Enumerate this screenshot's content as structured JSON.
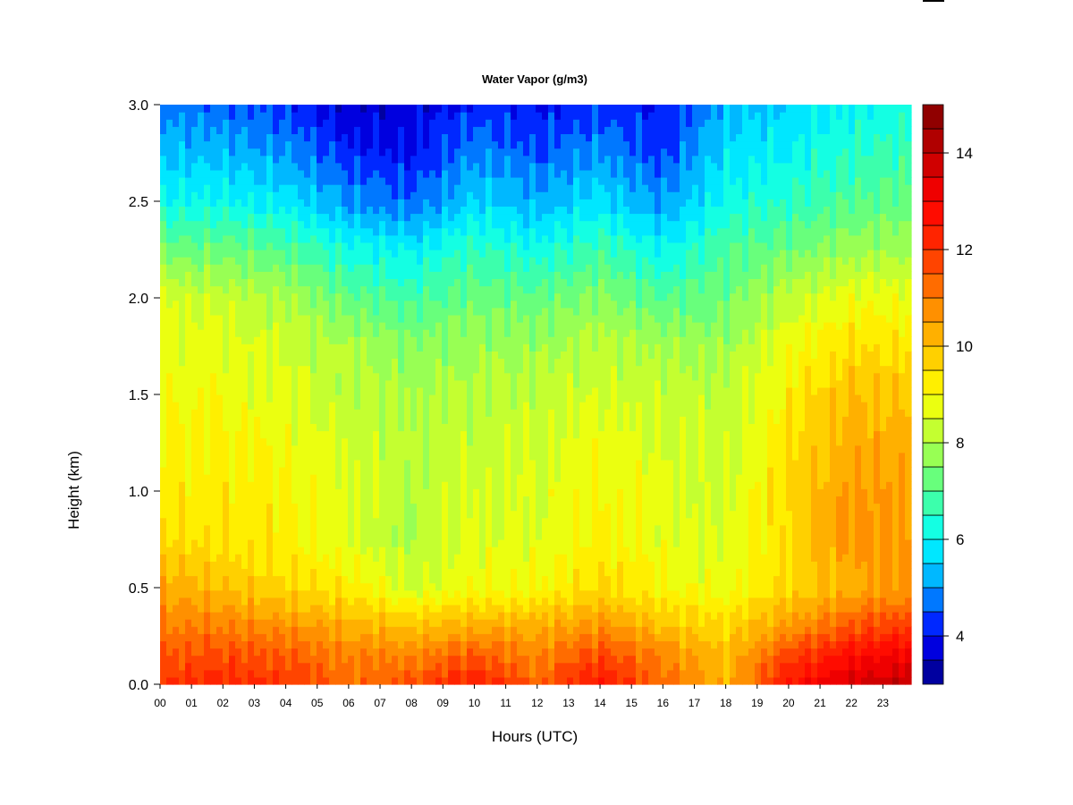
{
  "chart_data": {
    "type": "heatmap",
    "title": "Water Vapor (g/m3)",
    "xlabel": "Hours (UTC)",
    "ylabel": "Height (km)",
    "x_ticks": [
      "00",
      "01",
      "02",
      "03",
      "04",
      "05",
      "06",
      "07",
      "08",
      "09",
      "10",
      "11",
      "12",
      "13",
      "14",
      "15",
      "16",
      "17",
      "18",
      "19",
      "20",
      "21",
      "22",
      "23"
    ],
    "xlim": [
      0,
      23.9
    ],
    "y_ticks": [
      "0.0",
      "0.5",
      "1.0",
      "1.5",
      "2.0",
      "2.5",
      "3.0"
    ],
    "ylim": [
      0,
      3.0
    ],
    "colorbar": {
      "range": [
        3,
        15
      ],
      "step": 0.5,
      "tick_values": [
        4,
        6,
        8,
        10,
        12,
        14
      ],
      "tick_labels": [
        "4",
        "6",
        "8",
        "10",
        "12",
        "14"
      ],
      "colormap": [
        "#000080",
        "#0000ff",
        "#00a0ff",
        "#00ffff",
        "#50ff90",
        "#b0ff40",
        "#ffff00",
        "#ffc000",
        "#ff8000",
        "#ff3000",
        "#ff0000",
        "#c00000",
        "#800000"
      ]
    },
    "heights_km": [
      0.0,
      0.15,
      0.3,
      0.5,
      0.75,
      1.0,
      1.25,
      1.5,
      1.75,
      2.0,
      2.25,
      2.5,
      2.75,
      3.0
    ],
    "hours_utc": [
      0,
      2,
      4,
      6,
      8,
      10,
      12,
      14,
      16,
      18,
      20,
      22,
      23.9
    ],
    "values_gm3": [
      [
        12.0,
        11.5,
        11.0,
        10.3,
        9.6,
        9.3,
        9.1,
        8.9,
        8.7,
        8.5,
        7.3,
        6.1,
        5.4,
        4.8
      ],
      [
        12.2,
        11.7,
        11.0,
        10.0,
        9.4,
        9.3,
        9.1,
        8.9,
        8.7,
        8.3,
        7.3,
        6.1,
        5.3,
        4.6
      ],
      [
        12.0,
        11.5,
        10.7,
        9.6,
        9.2,
        9.1,
        8.9,
        8.6,
        8.4,
        8.0,
        7.0,
        5.8,
        5.0,
        4.3
      ],
      [
        11.3,
        10.9,
        10.3,
        9.3,
        8.6,
        8.6,
        8.4,
        8.2,
        8.0,
        7.2,
        6.2,
        5.0,
        4.2,
        3.6
      ],
      [
        11.6,
        10.9,
        10.0,
        8.4,
        8.0,
        8.1,
        8.1,
        7.9,
        7.6,
        6.8,
        5.9,
        4.6,
        4.0,
        3.6
      ],
      [
        12.5,
        11.5,
        10.3,
        8.9,
        8.6,
        8.5,
        8.3,
        8.1,
        7.8,
        7.3,
        6.6,
        5.6,
        4.9,
        4.2
      ],
      [
        11.3,
        10.9,
        10.3,
        9.0,
        8.6,
        8.6,
        8.4,
        8.2,
        7.8,
        7.2,
        6.2,
        5.2,
        4.5,
        4.0
      ],
      [
        12.6,
        11.8,
        10.7,
        9.6,
        9.2,
        9.0,
        8.8,
        8.5,
        8.2,
        7.6,
        6.8,
        5.7,
        5.0,
        4.3
      ],
      [
        11.3,
        10.9,
        10.0,
        9.0,
        8.7,
        8.6,
        8.5,
        8.3,
        7.9,
        7.0,
        6.0,
        5.0,
        4.3,
        4.0
      ],
      [
        10.2,
        10.0,
        9.6,
        8.8,
        8.5,
        8.4,
        8.3,
        8.1,
        7.8,
        7.3,
        6.9,
        6.2,
        5.7,
        5.2
      ],
      [
        12.6,
        11.8,
        10.6,
        9.6,
        9.6,
        9.6,
        9.4,
        9.2,
        8.9,
        8.2,
        7.3,
        6.5,
        6.0,
        5.6
      ],
      [
        13.6,
        12.8,
        11.5,
        10.3,
        10.6,
        10.6,
        10.3,
        10.0,
        9.5,
        8.8,
        7.8,
        7.0,
        6.5,
        6.0
      ],
      [
        14.0,
        13.2,
        12.0,
        10.6,
        10.5,
        10.4,
        10.2,
        9.9,
        9.4,
        8.8,
        7.9,
        7.2,
        6.7,
        6.2
      ]
    ]
  }
}
